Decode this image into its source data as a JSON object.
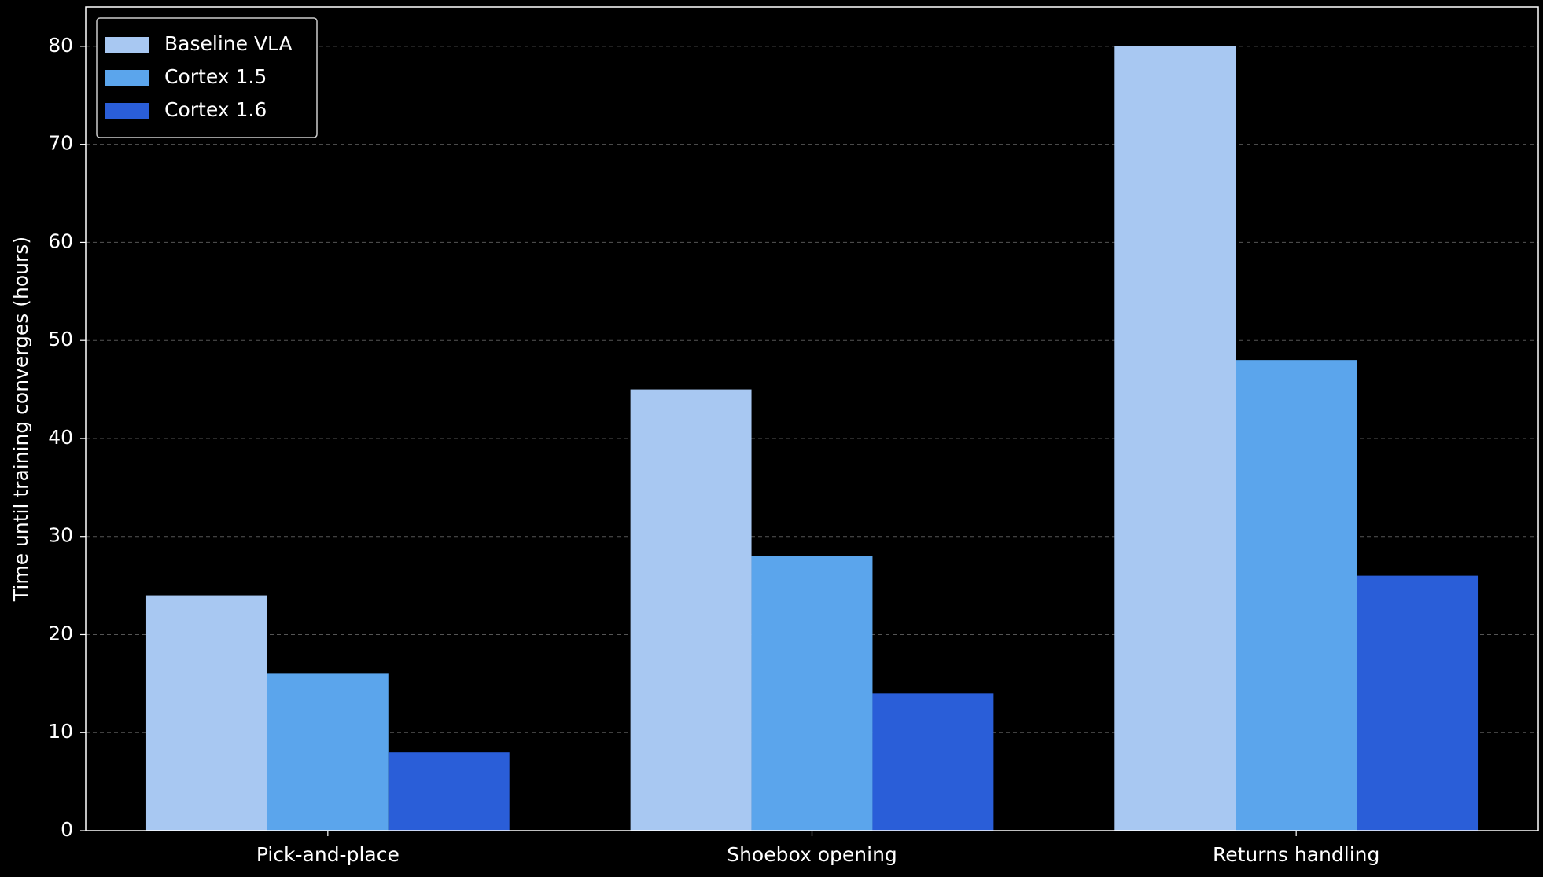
{
  "chart_data": {
    "type": "bar",
    "ylabel": "Time until training converges (hours)",
    "categories": [
      "Pick-and-place",
      "Shoebox opening",
      "Returns handling"
    ],
    "series": [
      {
        "name": "Baseline VLA",
        "color": "#a8c8f2",
        "values": [
          24,
          45,
          80
        ]
      },
      {
        "name": "Cortex 1.5",
        "color": "#5ba5ec",
        "values": [
          16,
          28,
          48
        ]
      },
      {
        "name": "Cortex 1.6",
        "color": "#2a5ed8",
        "values": [
          8,
          14,
          26
        ]
      }
    ],
    "ylim": [
      0,
      84
    ],
    "yticks": [
      0,
      10,
      20,
      30,
      40,
      50,
      60,
      70,
      80
    ],
    "grid": true,
    "legend": "upper-left"
  }
}
